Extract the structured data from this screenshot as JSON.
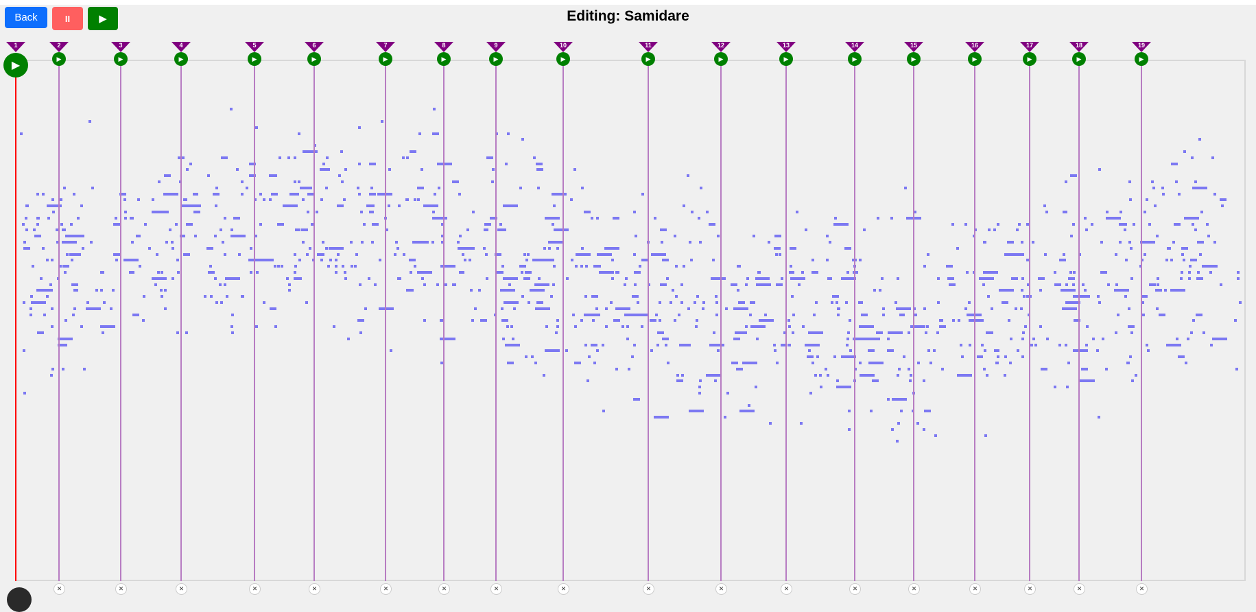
{
  "header": {
    "back_label": "Back",
    "pause_icon": "pause-icon",
    "pause_label": "II",
    "play_icon": "play-icon",
    "play_label": "▶",
    "title": "Editing: Samidare"
  },
  "colors": {
    "back": "#0d6efd",
    "pause": "#ff5f5f",
    "play": "#008000",
    "marker": "#800080",
    "note": "#7c78f2",
    "playhead": "#ff0000",
    "section_line": "#b77cc2"
  },
  "markers": [
    "1",
    "2",
    "3",
    "4",
    "5",
    "6",
    "7",
    "8",
    "9",
    "10",
    "11",
    "12",
    "13",
    "14",
    "15",
    "16",
    "17",
    "18",
    "19"
  ],
  "marker_play_label": "▶",
  "marker_delete_label": "✕"
}
